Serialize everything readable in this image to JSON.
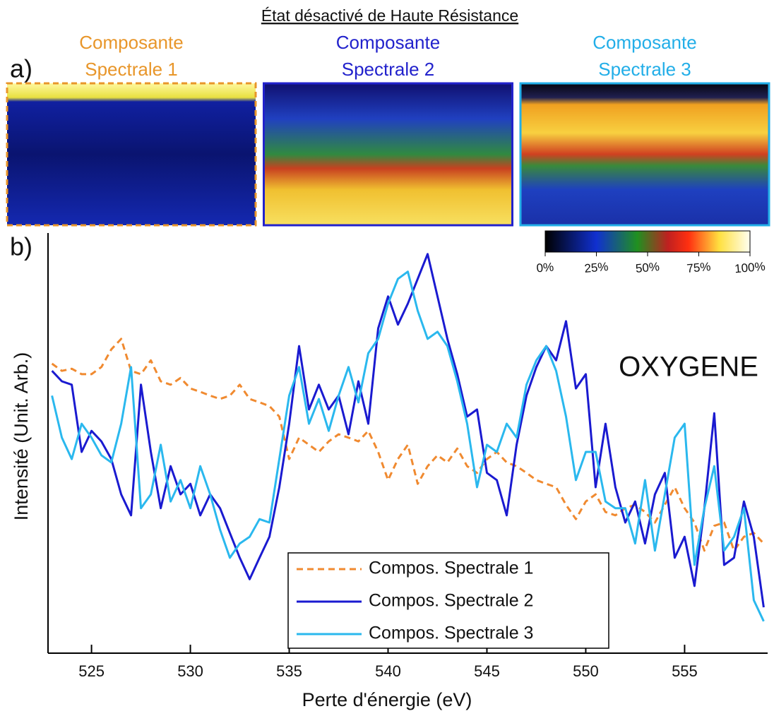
{
  "title": "État désactivé de Haute Résistance",
  "panel_labels": [
    "a)",
    "b)"
  ],
  "maps": [
    {
      "title": [
        "Composante",
        "Spectrale 1"
      ],
      "color": "#e8962a",
      "border": "dashed"
    },
    {
      "title": [
        "Composante",
        "Spectrale 2"
      ],
      "color": "#2222cc",
      "border": "solid"
    },
    {
      "title": [
        "Composante",
        "Spectrale 3"
      ],
      "color": "#22aee8",
      "border": "solid"
    }
  ],
  "colorbar": {
    "lim": [
      0,
      100
    ],
    "ticks": [
      {
        "value": 0,
        "label": "0%"
      },
      {
        "value": 25,
        "label": "25%"
      },
      {
        "value": 50,
        "label": "50%"
      },
      {
        "value": 75,
        "label": "75%"
      },
      {
        "value": 100,
        "label": "100%"
      }
    ]
  },
  "chart_data": {
    "type": "line",
    "xlabel": "Perte d'énergie (eV)",
    "ylabel": "Intensité (Unit. Arb.)",
    "annotation": "OXYGENE",
    "xlim": [
      522.8,
      559.2
    ],
    "ylim": [
      0,
      100
    ],
    "xticks": [
      525,
      530,
      535,
      540,
      545,
      550,
      555
    ],
    "legend": "lower center",
    "x": [
      523,
      523.5,
      524,
      524.5,
      525,
      525.5,
      526,
      526.5,
      527,
      527.5,
      528,
      528.5,
      529,
      529.5,
      530,
      530.5,
      531,
      531.5,
      532,
      532.5,
      533,
      533.5,
      534,
      534.5,
      535,
      535.5,
      536,
      536.5,
      537,
      537.5,
      538,
      538.5,
      539,
      539.5,
      540,
      540.5,
      541,
      541.5,
      542,
      542.5,
      543,
      543.5,
      544,
      544.5,
      545,
      545.5,
      546,
      546.5,
      547,
      547.5,
      548,
      548.5,
      549,
      549.5,
      550,
      550.5,
      551,
      551.5,
      552,
      552.5,
      553,
      553.5,
      554,
      554.5,
      555,
      555.5,
      556,
      556.5,
      557,
      557.5,
      558,
      558.5,
      559
    ],
    "series": [
      {
        "name": "Compos. Spectrale 1",
        "color": "#f08a30",
        "dashed": true,
        "values": [
          68.9,
          67.2,
          67.7,
          66.4,
          66.4,
          68.1,
          72.3,
          74.8,
          67.2,
          66.4,
          69.7,
          64.7,
          63.9,
          65.5,
          63.0,
          62.2,
          61.3,
          60.5,
          61.3,
          63.9,
          60.5,
          59.7,
          58.8,
          56.3,
          46.2,
          51.3,
          49.6,
          47.9,
          50.4,
          52.1,
          51.3,
          50.4,
          52.9,
          47.9,
          41.2,
          46.2,
          49.6,
          40.3,
          44.5,
          47.1,
          45.4,
          48.7,
          44.5,
          42.9,
          46.2,
          47.9,
          45.4,
          44.5,
          42.9,
          41.2,
          40.3,
          39.5,
          35.3,
          31.9,
          36.1,
          37.8,
          33.6,
          32.8,
          34.5,
          35.3,
          33.6,
          31.1,
          35.3,
          39.5,
          34.5,
          31.1,
          24.4,
          30.3,
          31.1,
          24.4,
          27.7,
          28.6,
          26.1
        ]
      },
      {
        "name": "Compos. Spectrale 2",
        "color": "#1a1ad0",
        "dashed": false,
        "values": [
          67.2,
          64.7,
          63.9,
          47.9,
          52.9,
          50.4,
          46.2,
          37.8,
          32.8,
          63.9,
          47.9,
          34.5,
          44.5,
          37.8,
          40.3,
          32.8,
          37.8,
          34.5,
          28.6,
          22.7,
          17.6,
          22.7,
          27.7,
          39.5,
          54.6,
          73.1,
          58.0,
          63.9,
          58.0,
          61.3,
          52.1,
          64.7,
          54.6,
          77.3,
          84.9,
          78.2,
          83.2,
          89.1,
          95.0,
          84.9,
          74.8,
          66.4,
          56.3,
          58.0,
          42.9,
          41.2,
          32.8,
          49.6,
          61.3,
          68.1,
          73.1,
          69.7,
          79.0,
          63.0,
          66.4,
          39.5,
          54.6,
          39.5,
          31.1,
          36.1,
          26.1,
          37.8,
          42.9,
          22.7,
          27.7,
          16.0,
          34.5,
          57.1,
          21.0,
          22.7,
          36.1,
          27.7,
          10.9
        ]
      },
      {
        "name": "Compos. Spectrale 3",
        "color": "#2ab8ee",
        "dashed": false,
        "values": [
          61.3,
          51.3,
          46.2,
          54.6,
          51.3,
          47.1,
          45.4,
          54.6,
          68.1,
          34.5,
          37.8,
          49.6,
          36.1,
          41.2,
          34.5,
          44.5,
          37.8,
          29.4,
          22.7,
          26.1,
          27.7,
          31.9,
          31.1,
          46.2,
          61.3,
          68.1,
          54.6,
          60.5,
          52.9,
          61.3,
          68.1,
          59.7,
          71.4,
          74.8,
          83.2,
          89.1,
          90.8,
          81.5,
          74.8,
          76.5,
          73.1,
          64.7,
          54.6,
          39.5,
          49.6,
          47.9,
          54.6,
          51.3,
          63.9,
          69.7,
          73.1,
          67.2,
          56.3,
          41.2,
          47.9,
          47.9,
          36.1,
          34.5,
          34.5,
          26.1,
          41.2,
          24.4,
          37.8,
          51.3,
          54.6,
          21.0,
          34.5,
          44.5,
          24.4,
          27.7,
          34.5,
          12.6,
          7.6
        ]
      }
    ]
  }
}
